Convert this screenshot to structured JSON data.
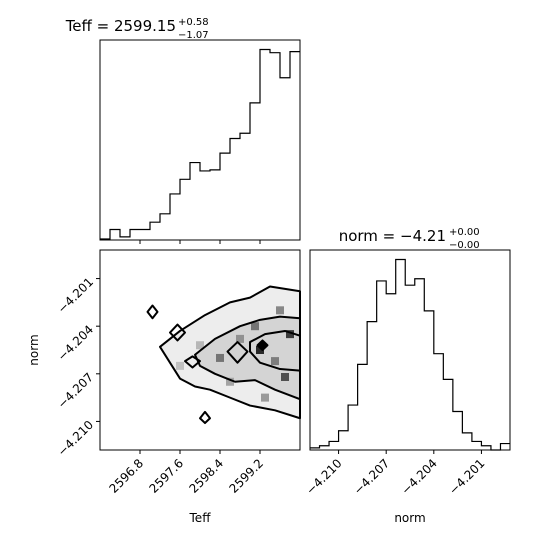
{
  "chart_data": [
    {
      "type": "histogram",
      "panel": "Teff marginal",
      "title": {
        "main": "Teff = 2599.15",
        "sup": "+0.58",
        "sub": "−1.07"
      },
      "bin_edges": [
        2596.0,
        2596.2,
        2596.4,
        2596.6,
        2596.8,
        2597.0,
        2597.2,
        2597.4,
        2597.6,
        2597.8,
        2598.0,
        2598.2,
        2598.4,
        2598.6,
        2598.8,
        2599.0,
        2599.2,
        2599.4,
        2599.6,
        2599.8,
        2600.0
      ],
      "counts": [
        1,
        10,
        3,
        10,
        10,
        17,
        25,
        44,
        58,
        74,
        66,
        67,
        83,
        97,
        102,
        131,
        182,
        179,
        155,
        180
      ],
      "xlim": [
        2596.0,
        2600.0
      ],
      "x_ticks": [
        "2596.8",
        "2597.6",
        "2598.4",
        "2599.2"
      ]
    },
    {
      "type": "heatmap",
      "panel": "Teff vs norm 2D density",
      "xlabel": "Teff",
      "ylabel": "norm",
      "xlim": [
        2596.0,
        2600.0
      ],
      "ylim": [
        -4.2118,
        -4.1992
      ],
      "x_ticks": [
        "2596.8",
        "2597.6",
        "2598.4",
        "2599.2"
      ],
      "y_ticks": [
        "−4.201",
        "−4.204",
        "−4.207",
        "−4.210"
      ],
      "dense_cells": [
        {
          "x": 2599.8,
          "y": -4.2045,
          "w": 0.9
        },
        {
          "x": 2599.2,
          "y": -4.2055,
          "w": 1.0
        },
        {
          "x": 2599.7,
          "y": -4.2072,
          "w": 0.8
        },
        {
          "x": 2599.1,
          "y": -4.204,
          "w": 0.6
        },
        {
          "x": 2598.4,
          "y": -4.206,
          "w": 0.6
        },
        {
          "x": 2598.8,
          "y": -4.2048,
          "w": 0.45
        },
        {
          "x": 2599.5,
          "y": -4.2062,
          "w": 0.55
        },
        {
          "x": 2598.0,
          "y": -4.2052,
          "w": 0.25
        },
        {
          "x": 2598.6,
          "y": -4.2075,
          "w": 0.35
        },
        {
          "x": 2599.3,
          "y": -4.2085,
          "w": 0.4
        },
        {
          "x": 2597.6,
          "y": -4.2065,
          "w": 0.2
        },
        {
          "x": 2599.6,
          "y": -4.203,
          "w": 0.5
        }
      ],
      "contour_levels": [
        [
          [
            2597.2,
            -4.2053
          ],
          [
            2597.6,
            -4.2043
          ],
          [
            2598.1,
            -4.2033
          ],
          [
            2598.6,
            -4.2025
          ],
          [
            2599.0,
            -4.2022
          ],
          [
            2599.4,
            -4.2015
          ],
          [
            2600.0,
            -4.2018
          ],
          [
            2600.0,
            -4.2098
          ],
          [
            2599.5,
            -4.2093
          ],
          [
            2599.0,
            -4.209
          ],
          [
            2598.6,
            -4.2085
          ],
          [
            2598.2,
            -4.208
          ],
          [
            2597.9,
            -4.2078
          ],
          [
            2597.6,
            -4.2073
          ],
          [
            2597.4,
            -4.2063
          ],
          [
            2597.2,
            -4.2053
          ]
        ],
        [
          [
            2597.9,
            -4.2058
          ],
          [
            2598.3,
            -4.2048
          ],
          [
            2598.8,
            -4.204
          ],
          [
            2599.2,
            -4.2036
          ],
          [
            2599.6,
            -4.2034
          ],
          [
            2600.0,
            -4.2035
          ],
          [
            2600.0,
            -4.2086
          ],
          [
            2599.5,
            -4.208
          ],
          [
            2599.1,
            -4.2074
          ],
          [
            2598.7,
            -4.2075
          ],
          [
            2598.3,
            -4.207
          ],
          [
            2598.0,
            -4.2065
          ],
          [
            2597.9,
            -4.2058
          ]
        ],
        [
          [
            2599.0,
            -4.205
          ],
          [
            2599.3,
            -4.2045
          ],
          [
            2599.7,
            -4.2043
          ],
          [
            2600.0,
            -4.2046
          ],
          [
            2600.0,
            -4.2068
          ],
          [
            2599.6,
            -4.2067
          ],
          [
            2599.2,
            -4.2063
          ],
          [
            2599.0,
            -4.2056
          ],
          [
            2599.0,
            -4.205
          ]
        ],
        [
          [
            2597.4,
            -4.2044
          ],
          [
            2597.55,
            -4.2039
          ],
          [
            2597.7,
            -4.2044
          ],
          [
            2597.55,
            -4.2049
          ],
          [
            2597.4,
            -4.2044
          ]
        ],
        [
          [
            2598.55,
            -4.2056
          ],
          [
            2598.75,
            -4.205
          ],
          [
            2598.95,
            -4.2056
          ],
          [
            2598.75,
            -4.2063
          ],
          [
            2598.55,
            -4.2056
          ]
        ],
        [
          [
            2599.15,
            -4.2052
          ],
          [
            2599.25,
            -4.2049
          ],
          [
            2599.35,
            -4.2052
          ],
          [
            2599.25,
            -4.2055
          ],
          [
            2599.15,
            -4.2052
          ]
        ],
        [
          [
            2596.95,
            -4.2031
          ],
          [
            2597.05,
            -4.2027
          ],
          [
            2597.15,
            -4.2031
          ],
          [
            2597.05,
            -4.2035
          ],
          [
            2596.95,
            -4.2031
          ]
        ],
        [
          [
            2597.7,
            -4.2062
          ],
          [
            2597.85,
            -4.2059
          ],
          [
            2598.0,
            -4.2062
          ],
          [
            2597.85,
            -4.2066
          ],
          [
            2597.7,
            -4.2062
          ]
        ],
        [
          [
            2598.0,
            -4.2098
          ],
          [
            2598.1,
            -4.2094
          ],
          [
            2598.2,
            -4.2098
          ],
          [
            2598.1,
            -4.2101
          ],
          [
            2598.0,
            -4.2098
          ]
        ]
      ]
    },
    {
      "type": "histogram",
      "panel": "norm marginal",
      "title": {
        "main": "norm = −4.21",
        "sup": "+0.00",
        "sub": "−0.00"
      },
      "xlabel": "norm",
      "bin_edges": [
        -4.2118,
        -4.2112,
        -4.2106,
        -4.21,
        -4.2094,
        -4.2088,
        -4.2082,
        -4.2076,
        -4.207,
        -4.2064,
        -4.2058,
        -4.2052,
        -4.2046,
        -4.204,
        -4.2034,
        -4.2028,
        -4.2022,
        -4.2016,
        -4.201,
        -4.2004,
        -4.1998,
        -4.1992
      ],
      "counts": [
        1,
        2,
        4,
        9,
        21,
        40,
        60,
        79,
        73,
        89,
        77,
        80,
        65,
        45,
        33,
        18,
        8,
        4,
        2,
        0,
        3
      ],
      "xlim": [
        -4.2118,
        -4.1992
      ],
      "x_ticks": [
        "−4.210",
        "−4.207",
        "−4.204",
        "−4.201"
      ]
    }
  ]
}
